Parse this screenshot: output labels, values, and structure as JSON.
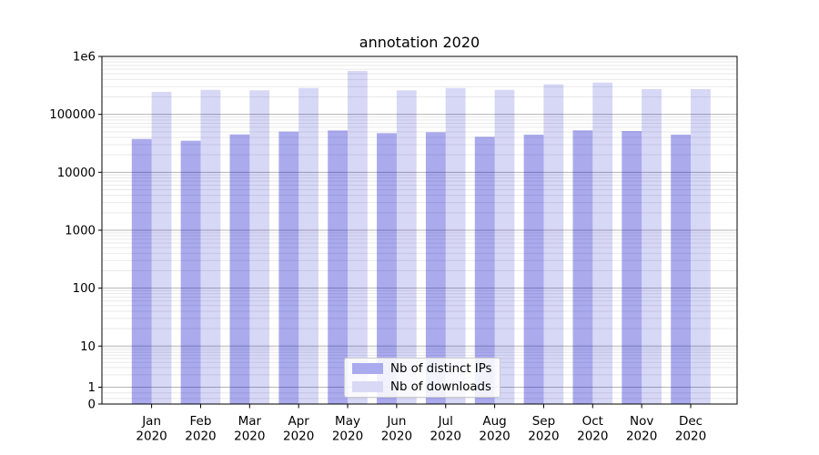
{
  "chart_data": {
    "type": "bar",
    "title": "annotation 2020",
    "categories": [
      "Jan",
      "Feb",
      "Mar",
      "Apr",
      "May",
      "Jun",
      "Jul",
      "Aug",
      "Sep",
      "Oct",
      "Nov",
      "Dec"
    ],
    "category_year": "2020",
    "series": [
      {
        "name": "Nb of distinct IPs",
        "color": "#aaaaee",
        "fill": "rgb(0,0,200)",
        "fill_opacity": 0.335,
        "values": [
          37600,
          35000,
          45000,
          50300,
          52700,
          47400,
          49200,
          41000,
          44600,
          52900,
          51500,
          44600
        ]
      },
      {
        "name": "Nb of downloads",
        "color": "#d9d9f6",
        "fill": "rgb(0,0,200)",
        "fill_opacity": 0.155,
        "values": [
          244000,
          265000,
          260000,
          285000,
          560000,
          260000,
          285000,
          265000,
          330000,
          354000,
          272000,
          272000
        ]
      }
    ],
    "yscale": "symlog",
    "ylim": [
      0,
      1000000
    ],
    "yticks": [
      {
        "label": "1e6",
        "value": 1000000
      },
      {
        "label": "100000",
        "value": 100000
      },
      {
        "label": "10000",
        "value": 10000
      },
      {
        "label": "1000",
        "value": 1000
      },
      {
        "label": "100",
        "value": 100
      },
      {
        "label": "10",
        "value": 10
      },
      {
        "label": "1",
        "value": 1
      },
      {
        "label": "0",
        "value": 0
      }
    ],
    "grid": "horizontal major and minor",
    "legend_position": "lower center"
  },
  "colors": {
    "major_grid": "#b5b5b5",
    "minor_grid": "#e9e9e9",
    "spine": "#000000",
    "text": "#000000",
    "legend_border": "#cccccc"
  }
}
